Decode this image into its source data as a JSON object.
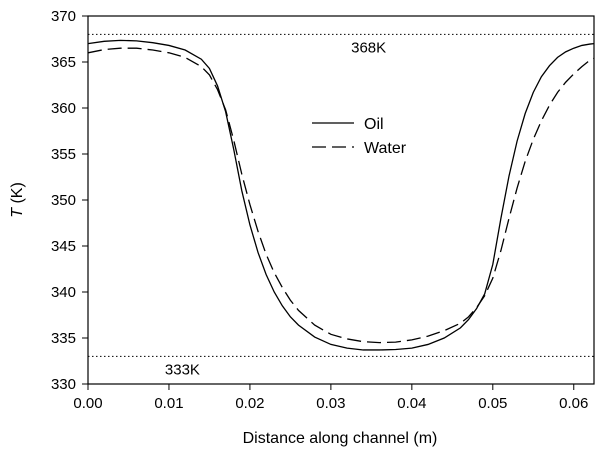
{
  "chart_data": {
    "type": "line",
    "xlabel": "Distance along channel (m)",
    "ylabel_var": "T",
    "ylabel_unit": " (K)",
    "xlim": [
      0.0,
      0.0625
    ],
    "ylim": [
      330,
      370
    ],
    "x_ticks": [
      "0.00",
      "0.01",
      "0.02",
      "0.03",
      "0.04",
      "0.05",
      "0.06"
    ],
    "x_tick_values": [
      0.0,
      0.01,
      0.02,
      0.03,
      0.04,
      0.05,
      0.06
    ],
    "y_ticks": [
      "330",
      "335",
      "340",
      "345",
      "350",
      "355",
      "360",
      "365",
      "370"
    ],
    "y_tick_values": [
      330,
      335,
      340,
      345,
      350,
      355,
      360,
      365,
      370
    ],
    "grid": false,
    "legend_position": "upper-center",
    "reference_lines": [
      {
        "value": 368,
        "label": "368K",
        "label_x": 0.0325
      },
      {
        "value": 333,
        "label": "333K",
        "label_x": 0.0095
      }
    ],
    "series": [
      {
        "name": "Oil",
        "style": "solid",
        "x": [
          0.0,
          0.002,
          0.004,
          0.006,
          0.008,
          0.01,
          0.012,
          0.014,
          0.015,
          0.016,
          0.017,
          0.018,
          0.019,
          0.02,
          0.021,
          0.022,
          0.023,
          0.024,
          0.025,
          0.026,
          0.028,
          0.03,
          0.032,
          0.034,
          0.036,
          0.038,
          0.04,
          0.042,
          0.044,
          0.046,
          0.047,
          0.048,
          0.049,
          0.05,
          0.051,
          0.052,
          0.053,
          0.054,
          0.055,
          0.056,
          0.057,
          0.058,
          0.059,
          0.06,
          0.061,
          0.062,
          0.0625
        ],
        "y": [
          367.0,
          367.25,
          367.35,
          367.3,
          367.1,
          366.8,
          366.3,
          365.3,
          364.3,
          362.4,
          359.6,
          355.5,
          351.0,
          347.3,
          344.3,
          341.9,
          340.0,
          338.5,
          337.3,
          336.4,
          335.1,
          334.3,
          333.9,
          333.7,
          333.7,
          333.75,
          333.9,
          334.3,
          335.0,
          336.1,
          337.0,
          338.2,
          339.8,
          343.0,
          348.0,
          352.6,
          356.4,
          359.4,
          361.7,
          363.4,
          364.6,
          365.5,
          366.1,
          366.5,
          366.8,
          366.95,
          367.0
        ]
      },
      {
        "name": "Water",
        "style": "dashed",
        "x": [
          0.0,
          0.002,
          0.004,
          0.006,
          0.008,
          0.01,
          0.012,
          0.014,
          0.015,
          0.016,
          0.017,
          0.018,
          0.019,
          0.02,
          0.021,
          0.022,
          0.023,
          0.024,
          0.025,
          0.026,
          0.028,
          0.03,
          0.032,
          0.034,
          0.036,
          0.038,
          0.04,
          0.042,
          0.044,
          0.046,
          0.047,
          0.048,
          0.049,
          0.05,
          0.051,
          0.052,
          0.053,
          0.054,
          0.055,
          0.056,
          0.057,
          0.058,
          0.059,
          0.06,
          0.061,
          0.062,
          0.0625
        ],
        "y": [
          366.0,
          366.35,
          366.5,
          366.5,
          366.3,
          366.0,
          365.5,
          364.5,
          363.6,
          362.0,
          359.8,
          356.5,
          352.8,
          349.5,
          346.6,
          344.1,
          342.1,
          340.5,
          339.1,
          338.0,
          336.4,
          335.4,
          334.9,
          334.6,
          334.5,
          334.55,
          334.8,
          335.2,
          335.8,
          336.6,
          337.3,
          338.3,
          339.6,
          341.5,
          344.5,
          348.0,
          351.3,
          354.2,
          356.6,
          358.6,
          360.3,
          361.7,
          362.8,
          363.7,
          364.5,
          365.2,
          365.4
        ]
      }
    ]
  }
}
